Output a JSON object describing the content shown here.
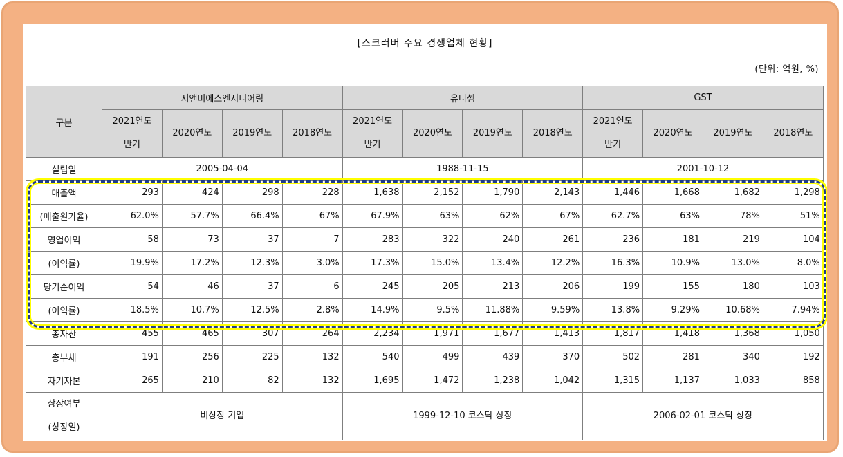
{
  "title": "[스크러버 주요 경쟁업체 현황]",
  "unit": "(단위: 억원, %)",
  "header": {
    "category_label": "구분",
    "companies": [
      "지앤비에스엔지니어링",
      "유니셈",
      "GST"
    ],
    "years": [
      "2021연도 반기",
      "2020연도",
      "2019연도",
      "2018연도"
    ],
    "years_first_line": "2021연도",
    "years_second_line": "반기"
  },
  "founded": {
    "label": "설립일",
    "values": [
      "2005-04-04",
      "1988-11-15",
      "2001-10-12"
    ]
  },
  "rows": [
    {
      "label": "매출액",
      "values": [
        "293",
        "424",
        "298",
        "228",
        "1,638",
        "2,152",
        "1,790",
        "2,143",
        "1,446",
        "1,668",
        "1,682",
        "1,298"
      ]
    },
    {
      "label": "(매출원가율)",
      "values": [
        "62.0%",
        "57.7%",
        "66.4%",
        "67%",
        "67.9%",
        "63%",
        "62%",
        "67%",
        "62.7%",
        "63%",
        "78%",
        "51%"
      ]
    },
    {
      "label": "영업이익",
      "values": [
        "58",
        "73",
        "37",
        "7",
        "283",
        "322",
        "240",
        "261",
        "236",
        "181",
        "219",
        "104"
      ]
    },
    {
      "label": "(이익률)",
      "values": [
        "19.9%",
        "17.2%",
        "12.3%",
        "3.0%",
        "17.3%",
        "15.0%",
        "13.4%",
        "12.2%",
        "16.3%",
        "10.9%",
        "13.0%",
        "8.0%"
      ]
    },
    {
      "label": "당기순이익",
      "values": [
        "54",
        "46",
        "37",
        "6",
        "245",
        "205",
        "213",
        "206",
        "199",
        "155",
        "180",
        "103"
      ]
    },
    {
      "label": "(이익률)",
      "values": [
        "18.5%",
        "10.7%",
        "12.5%",
        "2.8%",
        "14.9%",
        "9.5%",
        "11.88%",
        "9.59%",
        "13.8%",
        "9.29%",
        "10.68%",
        "7.94%"
      ]
    },
    {
      "label": "총자산",
      "values": [
        "455",
        "465",
        "307",
        "264",
        "2,234",
        "1,971",
        "1,677",
        "1,413",
        "1,817",
        "1,418",
        "1,368",
        "1,050"
      ]
    },
    {
      "label": "총부채",
      "values": [
        "191",
        "256",
        "225",
        "132",
        "540",
        "499",
        "439",
        "370",
        "502",
        "281",
        "340",
        "192"
      ]
    },
    {
      "label": "자기자본",
      "values": [
        "265",
        "210",
        "82",
        "132",
        "1,695",
        "1,472",
        "1,238",
        "1,042",
        "1,315",
        "1,137",
        "1,033",
        "858"
      ]
    }
  ],
  "listing": {
    "label_line1": "상장여부",
    "label_line2": "(상장일)",
    "values": [
      "비상장 기업",
      "1999-12-10 코스닥 상장",
      "2006-02-01 코스닥 상장"
    ]
  },
  "colors": {
    "frame": "#f4b183",
    "header_bg": "#d9d9d9",
    "highlight_dash": "#1f3c88",
    "highlight_glow": "#ffff00"
  }
}
